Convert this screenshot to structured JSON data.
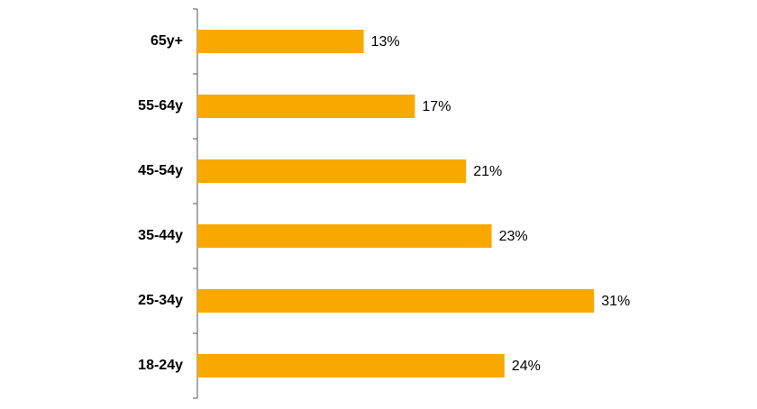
{
  "chart_data": {
    "type": "bar",
    "orientation": "horizontal",
    "categories": [
      "65y+",
      "55-64y",
      "45-54y",
      "35-44y",
      "25-34y",
      "18-24y"
    ],
    "values": [
      13,
      17,
      21,
      23,
      31,
      24
    ],
    "value_labels": [
      "13%",
      "17%",
      "21%",
      "23%",
      "31%",
      "24%"
    ],
    "color": "#f9a800"
  }
}
